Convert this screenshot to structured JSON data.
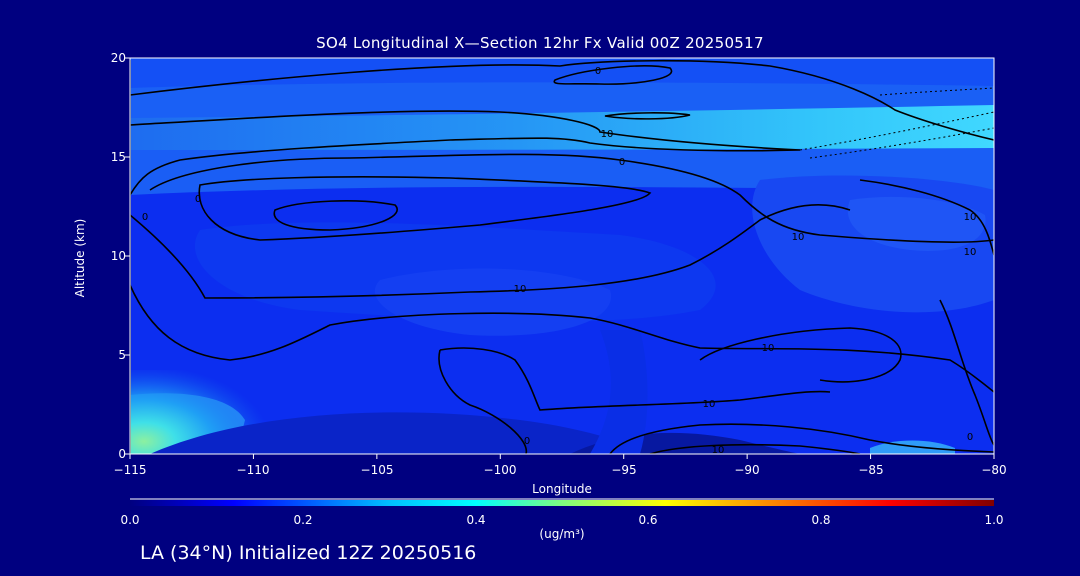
{
  "chart_data": {
    "type": "contour",
    "title": "SO4 Longitudinal X—Section 12hr  Fx Valid 00Z 20250517",
    "xlabel": "Longitude",
    "ylabel": "Altitude (km)",
    "xlim": [
      -115,
      -80
    ],
    "ylim": [
      0,
      20
    ],
    "x_ticks": [
      "−115",
      "−110",
      "−105",
      "−100",
      "−95",
      "−90",
      "−85",
      "−80"
    ],
    "y_ticks": [
      "0",
      "5",
      "10",
      "15",
      "20"
    ],
    "contour_labels": [
      "0",
      "10",
      "0",
      "10",
      "10",
      "10",
      "10",
      "0",
      "10",
      "10",
      "10",
      "0",
      "0",
      "0"
    ],
    "colorbar": {
      "min": 0.0,
      "max": 1.0,
      "ticks": [
        "0.0",
        "0.2",
        "0.4",
        "0.6",
        "0.8",
        "1.0"
      ],
      "units": "(ug/m³)",
      "colormap": [
        "#000080",
        "#0000ff",
        "#00bfff",
        "#00ffff",
        "#7fff7f",
        "#ffff00",
        "#ff7f00",
        "#ff0000",
        "#800000"
      ]
    },
    "background_color": "#000080"
  },
  "footer": "LA (34°N) Initialized 12Z 20250516"
}
